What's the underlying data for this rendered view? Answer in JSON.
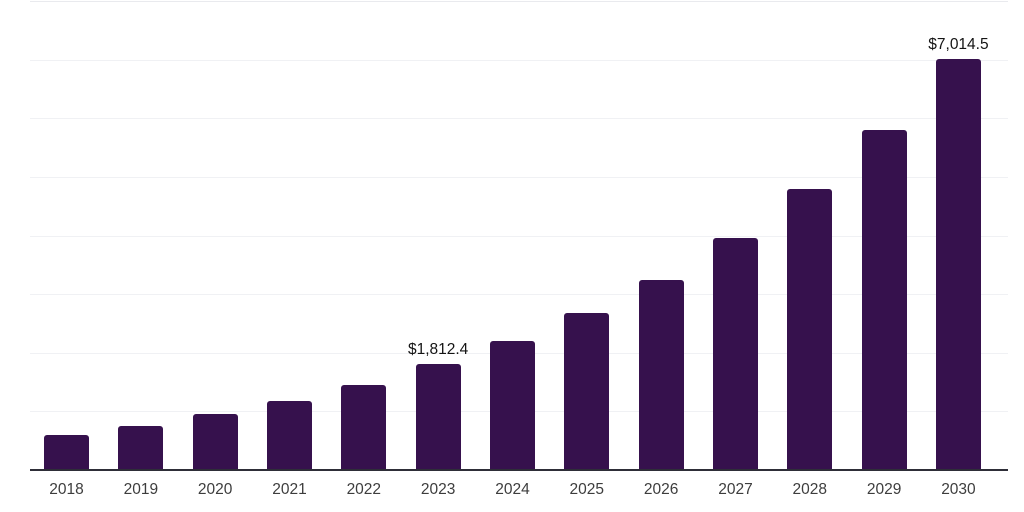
{
  "chart_data": {
    "type": "bar",
    "title": "",
    "xlabel": "",
    "ylabel": "",
    "categories": [
      "2018",
      "2019",
      "2020",
      "2021",
      "2022",
      "2023",
      "2024",
      "2025",
      "2026",
      "2027",
      "2028",
      "2029",
      "2030"
    ],
    "values": [
      600,
      750,
      955,
      1180,
      1450,
      1812.4,
      2200,
      2680,
      3245,
      3960,
      4795,
      5805,
      7014.5
    ],
    "data_labels": {
      "2023": "$1,812.4",
      "2030": "$7,014.5"
    },
    "ylim": [
      0,
      8000
    ],
    "gridline_interval": 1000,
    "grid": true,
    "legend": "none",
    "colors": {
      "bar": "#36114d",
      "axis": "#2e2e38",
      "gridline": "#f0f1f4",
      "top_gridline": "#e9eaee",
      "tick_label": "#3d3d3d",
      "data_label": "#141414",
      "background": "#ffffff"
    }
  }
}
